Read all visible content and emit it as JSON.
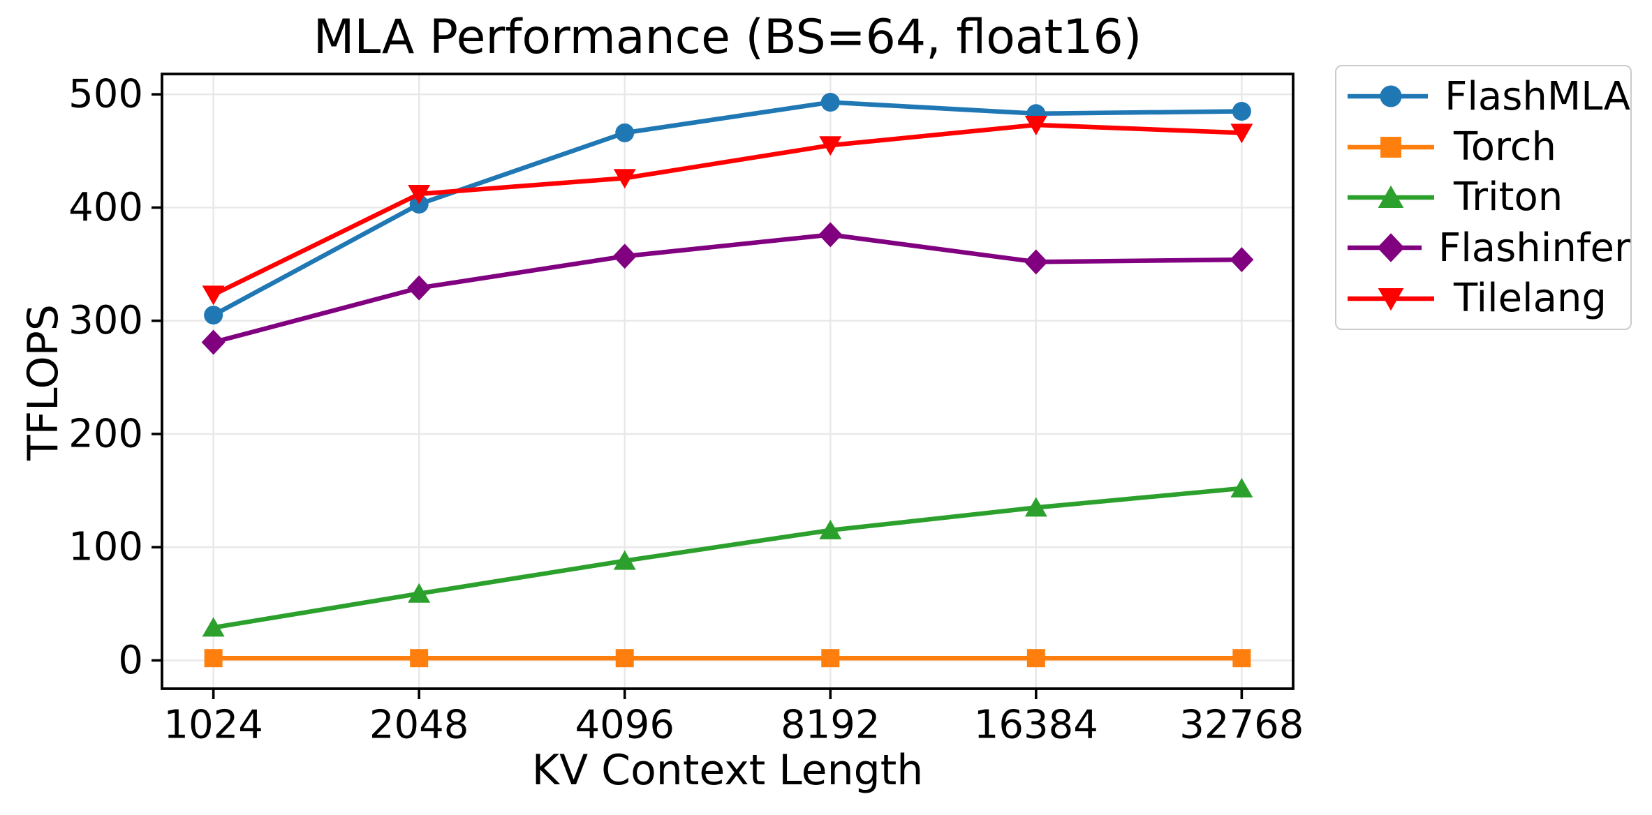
{
  "chart_data": {
    "type": "line",
    "title": "MLA Performance (BS=64, float16)",
    "xlabel": "KV Context Length",
    "ylabel": "TFLOPS",
    "categories": [
      "1024",
      "2048",
      "4096",
      "8192",
      "16384",
      "32768"
    ],
    "yticks": [
      0,
      100,
      200,
      300,
      400,
      500
    ],
    "ylim": [
      -25,
      518
    ],
    "grid": true,
    "grid_color": "#e8e8e8",
    "axis_color": "#000000",
    "legend_position": "outside-right",
    "series": [
      {
        "name": "FlashMLA",
        "color": "#1f77b4",
        "marker": "circle",
        "values": [
          305,
          403,
          466,
          493,
          483,
          485
        ]
      },
      {
        "name": "Torch",
        "color": "#ff7f0e",
        "marker": "square",
        "values": [
          2,
          2,
          2,
          2,
          2,
          2
        ]
      },
      {
        "name": "Triton",
        "color": "#2ca02c",
        "marker": "triangle-up",
        "values": [
          29,
          59,
          88,
          115,
          135,
          152
        ]
      },
      {
        "name": "Flashinfer",
        "color": "#800080",
        "marker": "diamond",
        "values": [
          281,
          329,
          357,
          376,
          352,
          354
        ]
      },
      {
        "name": "Tilelang",
        "color": "#ff0000",
        "marker": "triangle-down",
        "values": [
          323,
          412,
          426,
          455,
          473,
          466
        ]
      }
    ]
  }
}
